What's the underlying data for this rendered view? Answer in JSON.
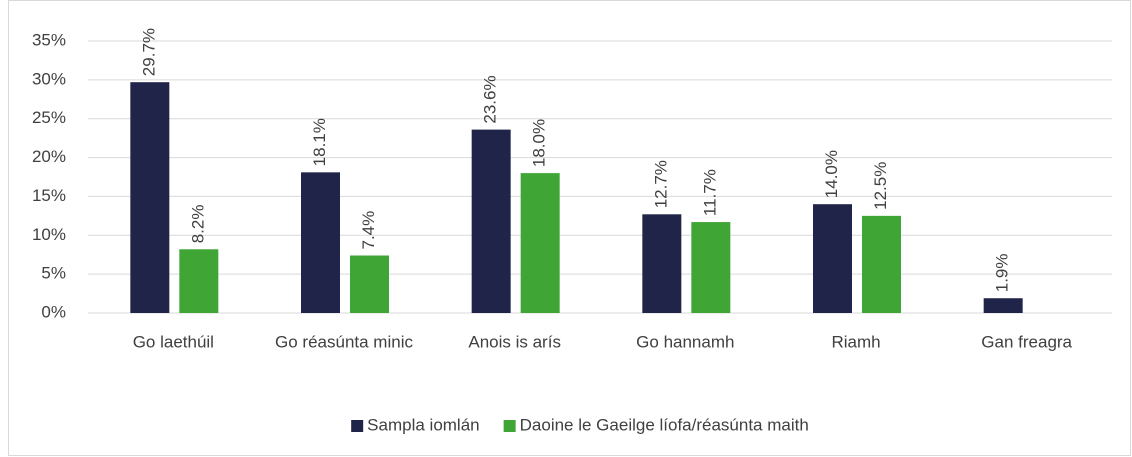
{
  "chart_data": {
    "type": "bar",
    "categories": [
      "Go laethúil",
      "Go réasúnta minic",
      "Anois is arís",
      "Go hannamh",
      "Riamh",
      "Gan freagra"
    ],
    "series": [
      {
        "name": "Sampla iomlán",
        "color": "#1f2448",
        "values": [
          29.7,
          18.1,
          23.6,
          12.7,
          14.0,
          1.9
        ],
        "value_labels": [
          "29.7%",
          "18.1%",
          "23.6%",
          "12.7%",
          "14.0%",
          "1.9%"
        ]
      },
      {
        "name": "Daoine le Gaeilge líofa/réasúnta maith",
        "color": "#3fa535",
        "values": [
          8.2,
          7.4,
          18.0,
          11.7,
          12.5,
          null
        ],
        "value_labels": [
          "8.2%",
          "7.4%",
          "18.0%",
          "11.7%",
          "12.5%",
          null
        ]
      }
    ],
    "ylim": [
      0,
      35
    ],
    "yticks": [
      {
        "value": 0,
        "label": "0%"
      },
      {
        "value": 5,
        "label": "5%"
      },
      {
        "value": 10,
        "label": "10%"
      },
      {
        "value": 15,
        "label": "15%"
      },
      {
        "value": 20,
        "label": "20%"
      },
      {
        "value": 25,
        "label": "25%"
      },
      {
        "value": 30,
        "label": "30%"
      },
      {
        "value": 35,
        "label": "35%"
      }
    ],
    "grid": true,
    "legend": "bottom"
  }
}
